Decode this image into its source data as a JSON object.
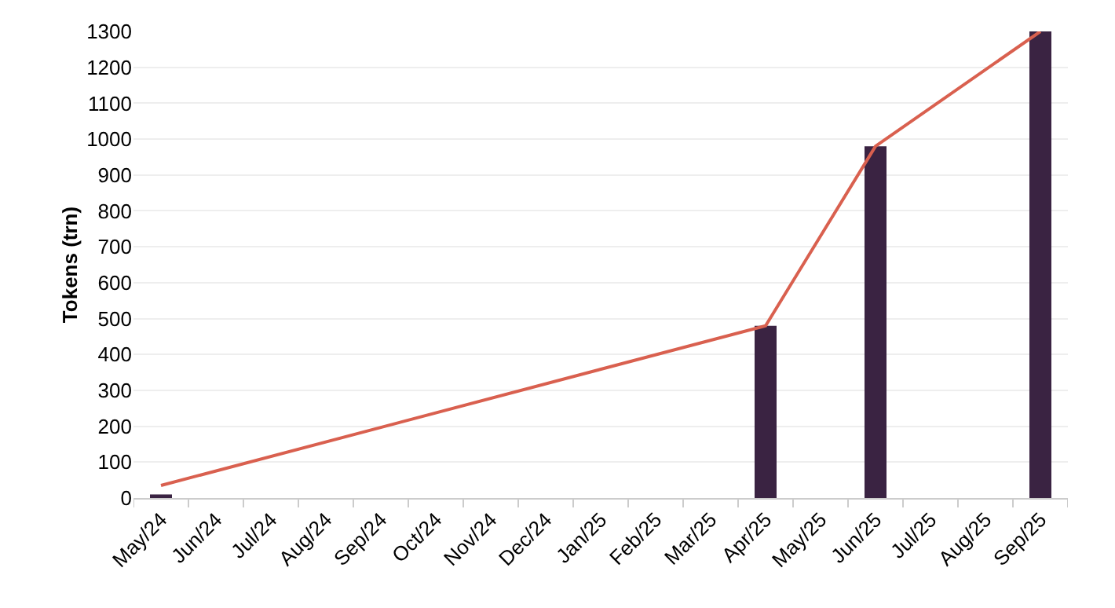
{
  "chart_data": {
    "type": "bar",
    "ylabel": "Tokens (trn)",
    "categories": [
      "May/24",
      "Jun/24",
      "Jul/24",
      "Aug/24",
      "Sep/24",
      "Oct/24",
      "Nov/24",
      "Dec/24",
      "Jan/25",
      "Feb/25",
      "Mar/25",
      "Apr/25",
      "May/25",
      "Jun/25",
      "Jul/25",
      "Aug/25",
      "Sep/25"
    ],
    "series": [
      {
        "color": "#3a2342",
        "values": [
          10,
          null,
          null,
          null,
          null,
          null,
          null,
          null,
          null,
          null,
          null,
          480,
          null,
          980,
          null,
          null,
          1300
        ]
      },
      {
        "type": "line",
        "color": "#d9604f",
        "values": [
          35,
          null,
          null,
          null,
          null,
          null,
          null,
          null,
          null,
          null,
          null,
          480,
          null,
          980,
          null,
          null,
          1300
        ]
      }
    ],
    "ylim": [
      0,
      1300
    ],
    "yticks": [
      0,
      100,
      200,
      300,
      400,
      500,
      600,
      700,
      800,
      900,
      1000,
      1100,
      1200,
      1300
    ],
    "grid": "y"
  }
}
